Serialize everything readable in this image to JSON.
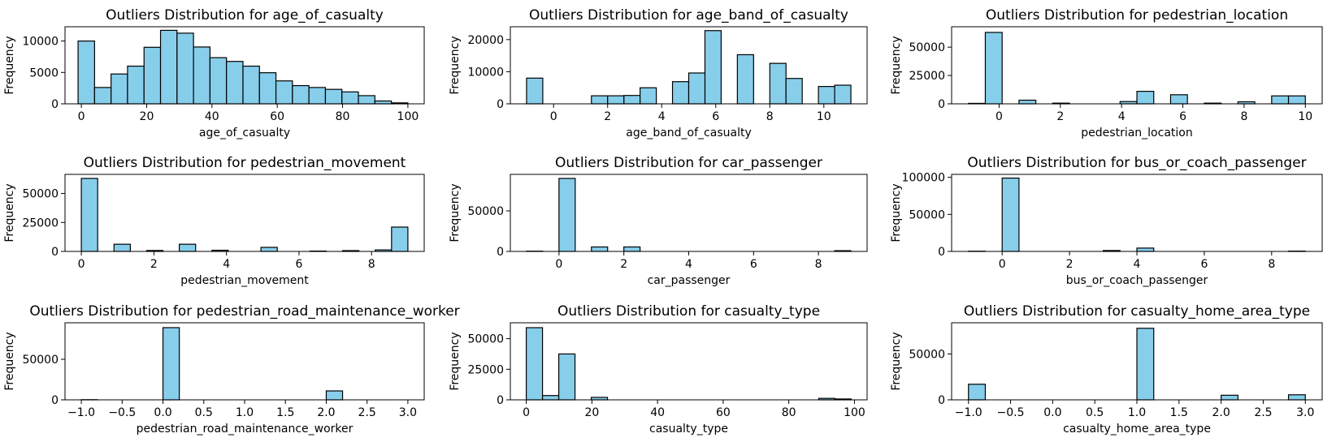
{
  "colors": {
    "bar_fill": "#87ceeb",
    "bar_edge": "#000000",
    "axes": "#000000",
    "background": "#ffffff"
  },
  "chart_data": [
    {
      "type": "bar",
      "title": "Outliers Distribution for age_of_casualty",
      "xlabel": "age_of_casualty",
      "ylabel": "Frequency",
      "xlim": [
        -5,
        105
      ],
      "ylim": [
        0,
        12270
      ],
      "xticks": [
        0,
        20,
        40,
        60,
        80,
        100
      ],
      "xtick_labels": [
        "0",
        "20",
        "40",
        "60",
        "80",
        "100"
      ],
      "yticks": [
        0,
        5000,
        10000
      ],
      "ytick_labels": [
        "0",
        "5000",
        "10000"
      ],
      "bins": [
        [
          -1,
          4.05,
          10000
        ],
        [
          4.05,
          9.1,
          2600
        ],
        [
          9.1,
          14.15,
          4750
        ],
        [
          14.15,
          19.2,
          6000
        ],
        [
          19.2,
          24.25,
          9000
        ],
        [
          24.25,
          29.3,
          11700
        ],
        [
          29.3,
          34.35,
          11250
        ],
        [
          34.35,
          39.4,
          9050
        ],
        [
          39.4,
          44.45,
          7350
        ],
        [
          44.45,
          49.5,
          6750
        ],
        [
          49.5,
          54.55,
          6000
        ],
        [
          54.55,
          59.6,
          4950
        ],
        [
          59.6,
          64.65,
          3650
        ],
        [
          64.65,
          69.7,
          2900
        ],
        [
          69.7,
          74.75,
          2600
        ],
        [
          74.75,
          79.8,
          2300
        ],
        [
          79.8,
          84.85,
          1900
        ],
        [
          84.85,
          89.9,
          1300
        ],
        [
          89.9,
          94.95,
          450
        ],
        [
          94.95,
          100,
          150
        ]
      ]
    },
    {
      "type": "bar",
      "title": "Outliers Distribution for age_band_of_casualty",
      "xlabel": "age_band_of_casualty",
      "ylabel": "Frequency",
      "xlim": [
        -1.6,
        11.6
      ],
      "ylim": [
        0,
        24000
      ],
      "xticks": [
        0,
        2,
        4,
        6,
        8,
        10
      ],
      "xtick_labels": [
        "0",
        "2",
        "4",
        "6",
        "8",
        "10"
      ],
      "yticks": [
        0,
        10000,
        20000
      ],
      "ytick_labels": [
        "0",
        "10000",
        "20000"
      ],
      "bins": [
        [
          -1,
          -0.4,
          8000
        ],
        [
          1.4,
          2,
          2500
        ],
        [
          2.6,
          3.2,
          2600
        ],
        [
          2.0,
          2.6,
          2500
        ],
        [
          3.2,
          3.8,
          5000
        ],
        [
          3.8,
          4.4,
          0
        ],
        [
          4.4,
          5,
          6900
        ],
        [
          5.6,
          6.2,
          22800
        ],
        [
          5,
          5.6,
          9600
        ],
        [
          6.8,
          7.4,
          15300
        ],
        [
          8,
          8.6,
          12600
        ],
        [
          8.6,
          9.2,
          7900
        ],
        [
          9.8,
          10.4,
          5400
        ],
        [
          10.4,
          11,
          5800
        ]
      ]
    },
    {
      "type": "bar",
      "title": "Outliers Distribution for pedestrian_location",
      "xlabel": "pedestrian_location",
      "ylabel": "Frequency",
      "xlim": [
        -1.55,
        10.55
      ],
      "ylim": [
        0,
        68000
      ],
      "xticks": [
        0,
        2,
        4,
        6,
        8,
        10
      ],
      "xtick_labels": [
        "0",
        "2",
        "4",
        "6",
        "8",
        "10"
      ],
      "yticks": [
        0,
        25000,
        50000
      ],
      "ytick_labels": [
        "0",
        "25000",
        "50000"
      ],
      "bins": [
        [
          -1,
          -0.45,
          400
        ],
        [
          -0.45,
          0.1,
          63000
        ],
        [
          0.65,
          1.2,
          3200
        ],
        [
          1.75,
          2.3,
          600
        ],
        [
          3.95,
          4.5,
          2000
        ],
        [
          4.5,
          5.05,
          11000
        ],
        [
          5.6,
          6.15,
          8000
        ],
        [
          6.7,
          7.25,
          600
        ],
        [
          7.8,
          8.35,
          1800
        ],
        [
          8.9,
          9.45,
          7000
        ],
        [
          9.45,
          10,
          7000
        ]
      ]
    },
    {
      "type": "bar",
      "title": "Outliers Distribution for pedestrian_movement",
      "xlabel": "pedestrian_movement",
      "ylabel": "Frequency",
      "xlim": [
        -0.45,
        9.45
      ],
      "ylim": [
        0,
        66500
      ],
      "xticks": [
        0,
        2,
        4,
        6,
        8
      ],
      "xtick_labels": [
        "0",
        "2",
        "4",
        "6",
        "8"
      ],
      "yticks": [
        0,
        25000,
        50000
      ],
      "ytick_labels": [
        "0",
        "25000",
        "50000"
      ],
      "bins": [
        [
          0,
          0.45,
          63000
        ],
        [
          0.9,
          1.35,
          6200
        ],
        [
          1.8,
          2.25,
          800
        ],
        [
          2.7,
          3.15,
          6200
        ],
        [
          3.6,
          4.05,
          1000
        ],
        [
          4.95,
          5.4,
          3500
        ],
        [
          6.3,
          6.75,
          300
        ],
        [
          7.2,
          7.65,
          700
        ],
        [
          8.1,
          8.55,
          1300
        ],
        [
          8.55,
          9,
          21000
        ]
      ]
    },
    {
      "type": "bar",
      "title": "Outliers Distribution for car_passenger",
      "xlabel": "car_passenger",
      "ylabel": "Frequency",
      "xlim": [
        -1.5,
        9.5
      ],
      "ylim": [
        0,
        95000
      ],
      "xticks": [
        0,
        2,
        4,
        6,
        8
      ],
      "xtick_labels": [
        "0",
        "2",
        "4",
        "6",
        "8"
      ],
      "yticks": [
        0,
        50000
      ],
      "ytick_labels": [
        "0",
        "50000"
      ],
      "bins": [
        [
          -1,
          -0.5,
          300
        ],
        [
          0,
          0.5,
          90000
        ],
        [
          1,
          1.5,
          5500
        ],
        [
          2,
          2.5,
          5500
        ],
        [
          8.5,
          9,
          900
        ]
      ]
    },
    {
      "type": "bar",
      "title": "Outliers Distribution for bus_or_coach_passenger",
      "xlabel": "bus_or_coach_passenger",
      "ylabel": "Frequency",
      "xlim": [
        -1.5,
        9.5
      ],
      "ylim": [
        0,
        104000
      ],
      "xticks": [
        0,
        2,
        4,
        6,
        8
      ],
      "xtick_labels": [
        "0",
        "2",
        "4",
        "6",
        "8"
      ],
      "yticks": [
        0,
        50000,
        100000
      ],
      "ytick_labels": [
        "0",
        "50000",
        "100000"
      ],
      "bins": [
        [
          -1,
          -0.5,
          300
        ],
        [
          0,
          0.5,
          99000
        ],
        [
          3,
          3.5,
          1200
        ],
        [
          4,
          4.5,
          4500
        ],
        [
          8.5,
          9,
          400
        ]
      ]
    },
    {
      "type": "bar",
      "title": "Outliers Distribution for pedestrian_road_maintenance_worker",
      "xlabel": "pedestrian_road_maintenance_worker",
      "ylabel": "Frequency",
      "xlim": [
        -1.2,
        3.2
      ],
      "ylim": [
        0,
        95000
      ],
      "xticks": [
        -1,
        -0.5,
        0,
        0.5,
        1,
        1.5,
        2,
        2.5,
        3
      ],
      "xtick_labels": [
        "−1.0",
        "−0.5",
        "0.0",
        "0.5",
        "1.0",
        "1.5",
        "2.0",
        "2.5",
        "3.0"
      ],
      "yticks": [
        0,
        50000
      ],
      "ytick_labels": [
        "0",
        "50000"
      ],
      "bins": [
        [
          -1,
          -0.8,
          200
        ],
        [
          0,
          0.2,
          89000
        ],
        [
          2,
          2.2,
          11000
        ]
      ]
    },
    {
      "type": "bar",
      "title": "Outliers Distribution for casualty_type",
      "xlabel": "casualty_type",
      "ylabel": "Frequency",
      "xlim": [
        -4.85,
        103.85
      ],
      "ylim": [
        0,
        63000
      ],
      "xticks": [
        0,
        20,
        40,
        60,
        80,
        100
      ],
      "xtick_labels": [
        "0",
        "20",
        "40",
        "60",
        "80",
        "100"
      ],
      "yticks": [
        0,
        25000,
        50000
      ],
      "ytick_labels": [
        "0",
        "25000",
        "50000"
      ],
      "bins": [
        [
          0,
          4.95,
          59000
        ],
        [
          4.95,
          9.9,
          3500
        ],
        [
          9.9,
          14.85,
          37500
        ],
        [
          19.8,
          24.75,
          2000
        ],
        [
          89.1,
          94.05,
          1200
        ],
        [
          94.05,
          99,
          700
        ]
      ]
    },
    {
      "type": "bar",
      "title": "Outliers Distribution for casualty_home_area_type",
      "xlabel": "casualty_home_area_type",
      "ylabel": "Frequency",
      "xlim": [
        -1.2,
        3.2
      ],
      "ylim": [
        0,
        84000
      ],
      "xticks": [
        -1,
        -0.5,
        0,
        0.5,
        1,
        1.5,
        2,
        2.5,
        3
      ],
      "xtick_labels": [
        "−1.0",
        "−0.5",
        "0.0",
        "0.5",
        "1.0",
        "1.5",
        "2.0",
        "2.5",
        "3.0"
      ],
      "yticks": [
        0,
        50000
      ],
      "ytick_labels": [
        "0",
        "50000"
      ],
      "bins": [
        [
          -1,
          -0.8,
          17000
        ],
        [
          1,
          1.2,
          78000
        ],
        [
          2,
          2.2,
          5000
        ],
        [
          2.8,
          3,
          5500
        ]
      ]
    }
  ]
}
